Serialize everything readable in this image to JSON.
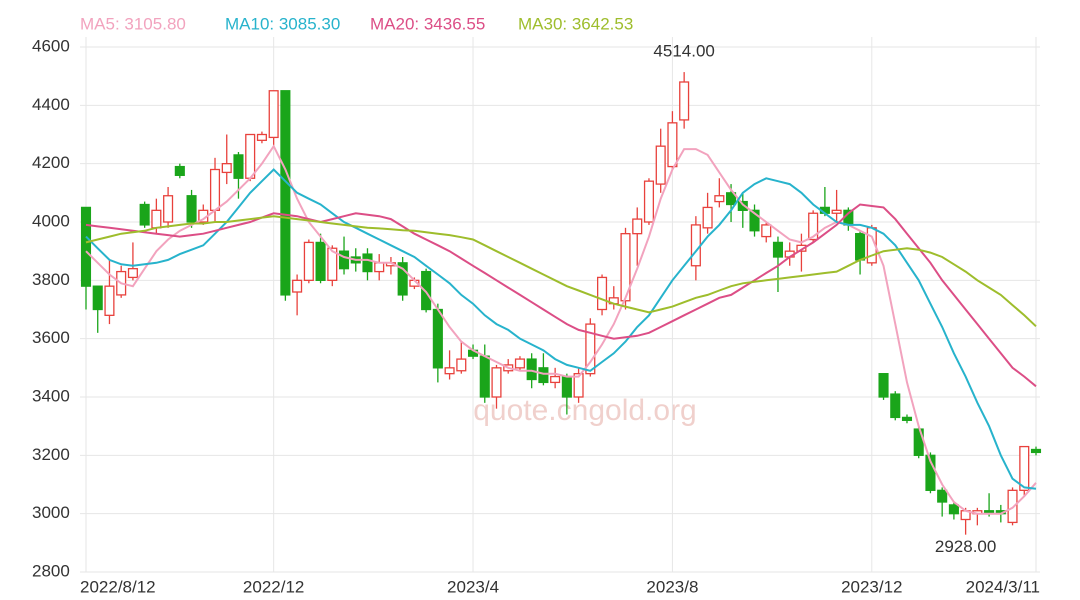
{
  "chart_data": {
    "type": "candlestick",
    "categories": [
      "2022/8/12",
      null,
      null,
      null,
      null,
      null,
      null,
      null,
      null,
      null,
      null,
      null,
      null,
      null,
      null,
      null,
      "2022/12",
      null,
      null,
      null,
      null,
      null,
      null,
      null,
      null,
      null,
      null,
      null,
      null,
      null,
      null,
      null,
      null,
      "2023/4",
      null,
      null,
      null,
      null,
      null,
      null,
      null,
      null,
      null,
      null,
      null,
      null,
      null,
      null,
      null,
      null,
      "2023/8",
      null,
      null,
      null,
      null,
      null,
      null,
      null,
      null,
      null,
      null,
      null,
      null,
      null,
      null,
      null,
      null,
      "2023/12",
      null,
      null,
      null,
      null,
      null,
      null,
      null,
      null,
      null,
      null,
      null,
      null,
      null,
      "2024/3/11"
    ],
    "open": [
      4050,
      3780,
      3680,
      3750,
      3810,
      4060,
      3980,
      4000,
      4190,
      4090,
      4000,
      4040,
      4170,
      4230,
      4150,
      4280,
      4290,
      4450,
      3760,
      3800,
      3930,
      3800,
      3900,
      3880,
      3890,
      3830,
      3850,
      3860,
      3780,
      3830,
      3700,
      3480,
      3490,
      3560,
      3540,
      3400,
      3490,
      3500,
      3530,
      3500,
      3450,
      3470,
      3400,
      3480,
      3700,
      3720,
      3730,
      3960,
      4000,
      4130,
      4190,
      4350,
      3850,
      3980,
      4070,
      4100,
      4070,
      4040,
      3950,
      3930,
      3880,
      3900,
      3940,
      4050,
      4030,
      4040,
      3960,
      3860,
      3480,
      3410,
      3330,
      3290,
      3200,
      3080,
      3030,
      2980,
      3000,
      3010,
      3010,
      2970,
      3080,
      3220
    ],
    "high": [
      4050,
      3780,
      3870,
      3850,
      3930,
      4070,
      4080,
      4120,
      4200,
      4110,
      4060,
      4220,
      4300,
      4240,
      4300,
      4310,
      4450,
      4450,
      3820,
      3940,
      3960,
      3920,
      3950,
      3910,
      3910,
      3890,
      3880,
      3880,
      3810,
      3840,
      3720,
      3560,
      3590,
      3580,
      3580,
      3510,
      3530,
      3540,
      3550,
      3550,
      3500,
      3480,
      3500,
      3670,
      3820,
      3780,
      3980,
      4050,
      4150,
      4320,
      4380,
      4514,
      4020,
      4100,
      4150,
      4130,
      4100,
      4060,
      4000,
      3950,
      3930,
      3960,
      4040,
      4120,
      4110,
      4050,
      3970,
      3990,
      3480,
      3420,
      3340,
      3300,
      3210,
      3090,
      3040,
      3020,
      3020,
      3070,
      3030,
      3090,
      3230,
      3230
    ],
    "low": [
      3700,
      3620,
      3650,
      3740,
      3800,
      3980,
      3960,
      3980,
      4150,
      3980,
      3990,
      4000,
      4130,
      4080,
      4140,
      4270,
      4260,
      3730,
      3680,
      3790,
      3790,
      3780,
      3820,
      3830,
      3800,
      3800,
      3820,
      3730,
      3770,
      3690,
      3450,
      3460,
      3480,
      3530,
      3380,
      3360,
      3480,
      3490,
      3430,
      3440,
      3430,
      3340,
      3380,
      3470,
      3680,
      3700,
      3700,
      3850,
      3990,
      4100,
      4180,
      4320,
      3800,
      3960,
      4050,
      4000,
      3980,
      3950,
      3930,
      3760,
      3850,
      3830,
      3930,
      4020,
      4000,
      3970,
      3820,
      3850,
      3390,
      3320,
      3310,
      3190,
      3070,
      2990,
      2980,
      2928,
      2960,
      2990,
      2970,
      2960,
      3060,
      3200
    ],
    "close": [
      3780,
      3700,
      3780,
      3830,
      3840,
      3990,
      4040,
      4090,
      4160,
      4000,
      4040,
      4180,
      4200,
      4150,
      4300,
      4300,
      4450,
      3750,
      3800,
      3930,
      3800,
      3910,
      3840,
      3860,
      3830,
      3860,
      3860,
      3750,
      3800,
      3700,
      3500,
      3500,
      3530,
      3540,
      3400,
      3500,
      3510,
      3530,
      3460,
      3450,
      3470,
      3400,
      3480,
      3650,
      3810,
      3740,
      3960,
      4010,
      4140,
      4260,
      4340,
      4480,
      3990,
      4050,
      4090,
      4060,
      4040,
      3970,
      3990,
      3880,
      3900,
      3920,
      4030,
      4030,
      4040,
      3990,
      3870,
      3980,
      3400,
      3330,
      3320,
      3200,
      3080,
      3040,
      3000,
      3010,
      3010,
      3000,
      3000,
      3080,
      3230,
      3210
    ],
    "up_color": "#e8413c",
    "down_color": "#1aa51a",
    "series": [
      {
        "name": "MA5: 3105.80",
        "color": "#f2a3be",
        "values": [
          3900,
          3860,
          3820,
          3790,
          3780,
          3840,
          3900,
          3940,
          3970,
          3990,
          4010,
          4040,
          4070,
          4110,
          4150,
          4200,
          4260,
          4180,
          4080,
          4000,
          3950,
          3900,
          3880,
          3870,
          3870,
          3860,
          3860,
          3840,
          3800,
          3760,
          3700,
          3640,
          3590,
          3560,
          3540,
          3520,
          3500,
          3490,
          3490,
          3480,
          3480,
          3470,
          3470,
          3520,
          3580,
          3650,
          3740,
          3840,
          3950,
          4080,
          4180,
          4250,
          4250,
          4230,
          4170,
          4110,
          4060,
          4030,
          4000,
          3970,
          3940,
          3930,
          3950,
          3980,
          4000,
          3990,
          3970,
          3950,
          3850,
          3650,
          3450,
          3300,
          3180,
          3100,
          3040,
          3010,
          3000,
          3000,
          3000,
          3020,
          3060,
          3105.8
        ]
      },
      {
        "name": "MA10: 3085.30",
        "color": "#27b3cc",
        "values": [
          3950,
          3910,
          3870,
          3855,
          3850,
          3855,
          3860,
          3870,
          3890,
          3905,
          3920,
          3960,
          4000,
          4050,
          4100,
          4140,
          4180,
          4140,
          4100,
          4080,
          4060,
          4030,
          4000,
          3980,
          3960,
          3940,
          3920,
          3900,
          3880,
          3850,
          3820,
          3790,
          3750,
          3720,
          3680,
          3650,
          3630,
          3600,
          3580,
          3560,
          3530,
          3510,
          3500,
          3490,
          3520,
          3550,
          3590,
          3640,
          3680,
          3740,
          3800,
          3850,
          3900,
          3950,
          3990,
          4040,
          4100,
          4130,
          4150,
          4140,
          4130,
          4100,
          4060,
          4030,
          4000,
          3990,
          3990,
          3980,
          3960,
          3920,
          3860,
          3800,
          3720,
          3640,
          3550,
          3470,
          3380,
          3300,
          3200,
          3120,
          3090,
          3085.3
        ]
      },
      {
        "name": "MA20: 3436.55",
        "color": "#dc4e86",
        "values": [
          3990,
          3985,
          3980,
          3975,
          3970,
          3965,
          3960,
          3955,
          3950,
          3955,
          3960,
          3970,
          3980,
          3990,
          4000,
          4015,
          4030,
          4025,
          4020,
          4010,
          4000,
          4010,
          4020,
          4030,
          4025,
          4020,
          4010,
          3985,
          3960,
          3940,
          3920,
          3900,
          3875,
          3850,
          3825,
          3800,
          3775,
          3750,
          3725,
          3700,
          3675,
          3650,
          3630,
          3620,
          3610,
          3600,
          3605,
          3610,
          3620,
          3640,
          3660,
          3680,
          3700,
          3720,
          3740,
          3750,
          3775,
          3800,
          3825,
          3850,
          3880,
          3905,
          3930,
          3960,
          3990,
          4030,
          4060,
          4055,
          4050,
          4010,
          3960,
          3910,
          3860,
          3800,
          3750,
          3700,
          3650,
          3600,
          3550,
          3500,
          3470,
          3436.55
        ]
      },
      {
        "name": "MA30: 3642.53",
        "color": "#9ebd2c",
        "values": [
          3930,
          3940,
          3950,
          3960,
          3965,
          3970,
          3980,
          3985,
          3990,
          3995,
          3995,
          4000,
          4000,
          4005,
          4010,
          4015,
          4020,
          4015,
          4010,
          4005,
          4000,
          3995,
          3990,
          3985,
          3980,
          3978,
          3975,
          3972,
          3970,
          3965,
          3960,
          3955,
          3948,
          3940,
          3920,
          3900,
          3880,
          3860,
          3840,
          3820,
          3800,
          3780,
          3765,
          3750,
          3735,
          3720,
          3710,
          3700,
          3690,
          3700,
          3710,
          3725,
          3740,
          3750,
          3765,
          3780,
          3790,
          3795,
          3800,
          3805,
          3810,
          3815,
          3820,
          3825,
          3830,
          3850,
          3870,
          3885,
          3900,
          3905,
          3910,
          3905,
          3895,
          3880,
          3855,
          3830,
          3800,
          3775,
          3750,
          3715,
          3680,
          3642.53
        ]
      }
    ],
    "annotations": [
      {
        "label": "4514.00",
        "value": 4514
      },
      {
        "label": "2928.00",
        "value": 2928
      }
    ],
    "ylim": [
      2800,
      4600
    ],
    "yticks": [
      2800,
      3000,
      3200,
      3400,
      3600,
      3800,
      4000,
      4200,
      4400,
      4600
    ],
    "grid": true,
    "watermark": "quote.cngold.org"
  }
}
